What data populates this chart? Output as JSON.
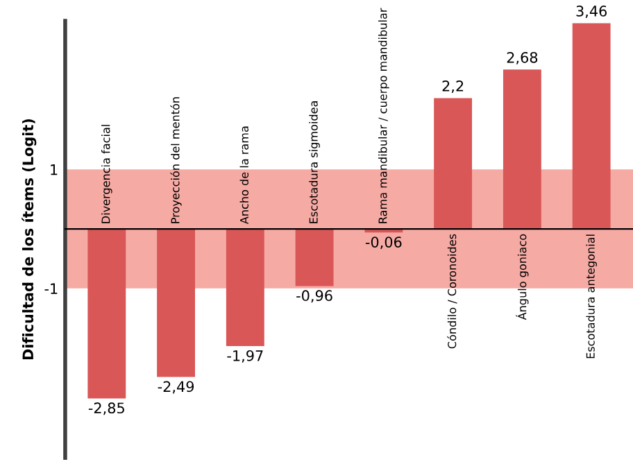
{
  "chart_data": {
    "type": "bar",
    "ylabel": "Dificultad de los ítems (Logit)",
    "categories": [
      "Divergencia facial",
      "Proyección del mentón",
      "Ancho de la rama",
      "Escotadura sigmoidea",
      "Rama mandibular / cuerpo mandibular",
      "Cóndilo / Coronoides",
      "Ángulo goniaco",
      "Escotadura antegonial"
    ],
    "values": [
      -2.85,
      -2.49,
      -1.97,
      -0.96,
      -0.06,
      2.2,
      2.68,
      3.46
    ],
    "value_labels": [
      "-2,85",
      "-2,49",
      "-1,97",
      "-0,96",
      "-0,06",
      "2,2",
      "2,68",
      "3,46"
    ],
    "color": "#d95757",
    "ylim": [
      -3.85,
      3.5
    ],
    "yticks": [
      1,
      -1
    ],
    "bands": [
      {
        "axis": "y",
        "from": -1,
        "to": 1,
        "color": "#f6aaa4"
      }
    ],
    "grid": false,
    "legend": false
  }
}
